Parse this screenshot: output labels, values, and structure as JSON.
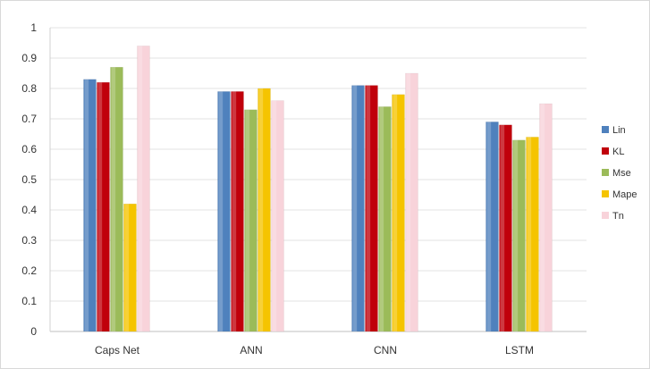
{
  "chart_data": {
    "type": "bar",
    "title": "",
    "xlabel": "",
    "ylabel": "",
    "ylim": [
      0,
      1
    ],
    "yticks": [
      "0",
      "0.1",
      "0.2",
      "0.3",
      "0.4",
      "0.5",
      "0.6",
      "0.7",
      "0.8",
      "0.9",
      "1"
    ],
    "grid": true,
    "legend_position": "right",
    "categories": [
      "Caps Net",
      "ANN",
      "CNN",
      "LSTM"
    ],
    "series": [
      {
        "name": "Lin",
        "color": "#4F81BD",
        "values": [
          0.83,
          0.79,
          0.81,
          0.69
        ]
      },
      {
        "name": "KL",
        "color": "#C0000B",
        "values": [
          0.82,
          0.79,
          0.81,
          0.68
        ]
      },
      {
        "name": "Mse",
        "color": "#9BBB59",
        "values": [
          0.87,
          0.73,
          0.74,
          0.63
        ]
      },
      {
        "name": "Mape",
        "color": "#F5C400",
        "values": [
          0.42,
          0.8,
          0.78,
          0.64
        ]
      },
      {
        "name": "Tn",
        "color": "#F8D3DA",
        "values": [
          0.94,
          0.76,
          0.85,
          0.75
        ]
      }
    ]
  }
}
